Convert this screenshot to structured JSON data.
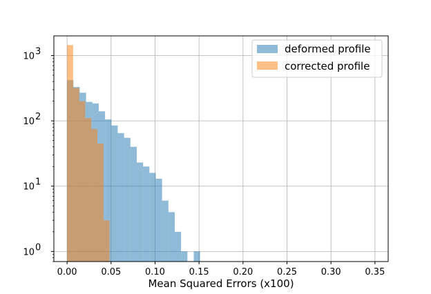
{
  "chart_data": {
    "type": "histogram",
    "xlabel": "Mean Squared Errors (x100)",
    "ylabel": "",
    "title": "",
    "y_scale": "log",
    "xlim": [
      -0.015,
      0.365
    ],
    "ylim": [
      0.7,
      2000
    ],
    "x_ticks": [
      0.0,
      0.05,
      0.1,
      0.15,
      0.2,
      0.25,
      0.3,
      0.35
    ],
    "x_tick_labels": [
      "0.00",
      "0.05",
      "0.10",
      "0.15",
      "0.20",
      "0.25",
      "0.30",
      "0.35"
    ],
    "y_ticks": [
      1,
      10,
      100,
      1000
    ],
    "y_tick_labels": [
      {
        "base": "10",
        "exp": "0"
      },
      {
        "base": "10",
        "exp": "1"
      },
      {
        "base": "10",
        "exp": "2"
      },
      {
        "base": "10",
        "exp": "3"
      }
    ],
    "grid": true,
    "legend_position": "upper right",
    "series": [
      {
        "name": "deformed profile",
        "color": "#1f77b4",
        "bins": [
          {
            "x0": 0.0,
            "x1": 0.0072,
            "count": 420
          },
          {
            "x0": 0.0072,
            "x1": 0.0144,
            "count": 330
          },
          {
            "x0": 0.0144,
            "x1": 0.0216,
            "count": 270
          },
          {
            "x0": 0.0216,
            "x1": 0.0288,
            "count": 195
          },
          {
            "x0": 0.0288,
            "x1": 0.036,
            "count": 185
          },
          {
            "x0": 0.036,
            "x1": 0.0432,
            "count": 140
          },
          {
            "x0": 0.0432,
            "x1": 0.0504,
            "count": 105
          },
          {
            "x0": 0.0504,
            "x1": 0.0576,
            "count": 85
          },
          {
            "x0": 0.0576,
            "x1": 0.0648,
            "count": 65
          },
          {
            "x0": 0.0648,
            "x1": 0.072,
            "count": 55
          },
          {
            "x0": 0.072,
            "x1": 0.0792,
            "count": 40
          },
          {
            "x0": 0.0792,
            "x1": 0.0864,
            "count": 23
          },
          {
            "x0": 0.0864,
            "x1": 0.0936,
            "count": 20
          },
          {
            "x0": 0.0936,
            "x1": 0.1008,
            "count": 16
          },
          {
            "x0": 0.1008,
            "x1": 0.108,
            "count": 13
          },
          {
            "x0": 0.108,
            "x1": 0.1152,
            "count": 6
          },
          {
            "x0": 0.1152,
            "x1": 0.1224,
            "count": 4
          },
          {
            "x0": 0.1224,
            "x1": 0.1296,
            "count": 2
          },
          {
            "x0": 0.1296,
            "x1": 0.1368,
            "count": 1
          },
          {
            "x0": 0.1368,
            "x1": 0.144,
            "count": 0
          },
          {
            "x0": 0.144,
            "x1": 0.1512,
            "count": 1
          }
        ]
      },
      {
        "name": "corrected profile",
        "color": "#ff7f0e",
        "bins": [
          {
            "x0": 0.0,
            "x1": 0.0069,
            "count": 1450
          },
          {
            "x0": 0.0069,
            "x1": 0.0138,
            "count": 320
          },
          {
            "x0": 0.0138,
            "x1": 0.0207,
            "count": 200
          },
          {
            "x0": 0.0207,
            "x1": 0.0276,
            "count": 110
          },
          {
            "x0": 0.0276,
            "x1": 0.0345,
            "count": 75
          },
          {
            "x0": 0.0345,
            "x1": 0.0414,
            "count": 45
          },
          {
            "x0": 0.0414,
            "x1": 0.0483,
            "count": 3
          }
        ]
      }
    ]
  }
}
